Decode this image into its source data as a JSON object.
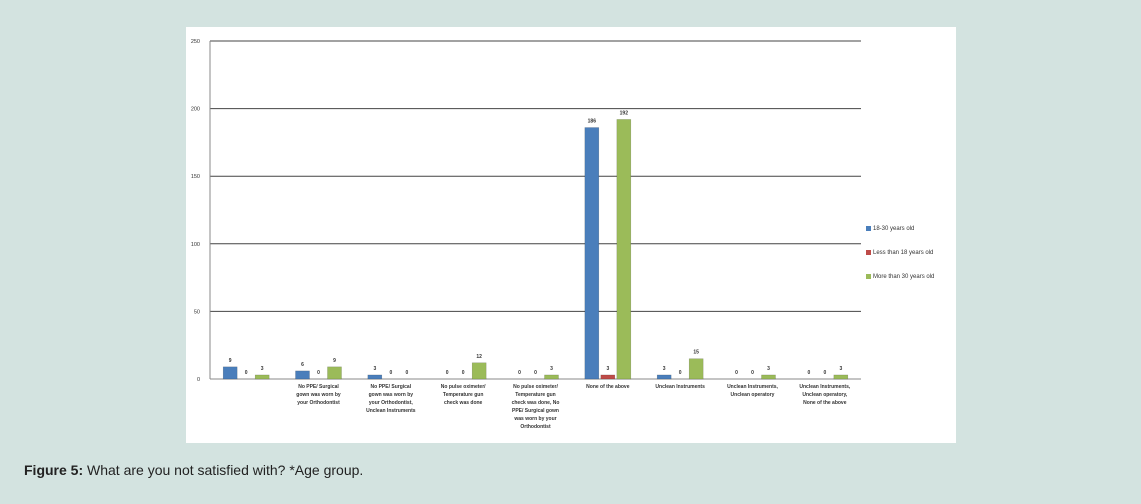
{
  "caption": {
    "label": "Figure 5:",
    "text": " What are you not satisfied with? *Age group."
  },
  "colors": {
    "series_blue": "#4a7ebb",
    "series_red": "#be4b48",
    "series_green": "#9bbb59",
    "page_bg": "#d3e3e0"
  },
  "chart_data": {
    "type": "bar",
    "ylim": [
      0,
      250
    ],
    "yticks": [
      "0",
      "50",
      "100",
      "150",
      "200",
      "250"
    ],
    "grid": true,
    "legend_position": "right",
    "categories": [
      "",
      "No PPE/ Surgical gown was worn by your Orthodontist",
      "No PPE/ Surgical gown was worn by your Orthodontist, Unclean Instruments",
      "No pulse oximeter/ Temperature gun check was done",
      "No pulse oximeter/ Temperature gun check was done, No PPE/ Surgical gown was worn by your Orthodontist",
      "None of the above",
      "Unclean Instruments",
      "Unclean Instruments, Unclean operatory",
      "Unclean Instruments, Unclean operatory, None of the above"
    ],
    "series": [
      {
        "name": "18-30 years old",
        "values": [
          9,
          6,
          3,
          0,
          0,
          186,
          3,
          0,
          0
        ],
        "labels": [
          "9",
          "6",
          "3",
          "0",
          "0",
          "186",
          "3",
          "0",
          "0"
        ]
      },
      {
        "name": "Less than 18 years old",
        "values": [
          0,
          0,
          0,
          0,
          0,
          3,
          0,
          0,
          0
        ],
        "labels": [
          "0",
          "0",
          "0",
          "0",
          "0",
          "3",
          "0",
          "0",
          "0"
        ]
      },
      {
        "name": "More than 30 years old",
        "values": [
          3,
          9,
          0,
          12,
          3,
          192,
          15,
          3,
          3
        ],
        "labels": [
          "3",
          "9",
          "0",
          "12",
          "3",
          "192",
          "15",
          "3",
          "3"
        ]
      }
    ]
  }
}
